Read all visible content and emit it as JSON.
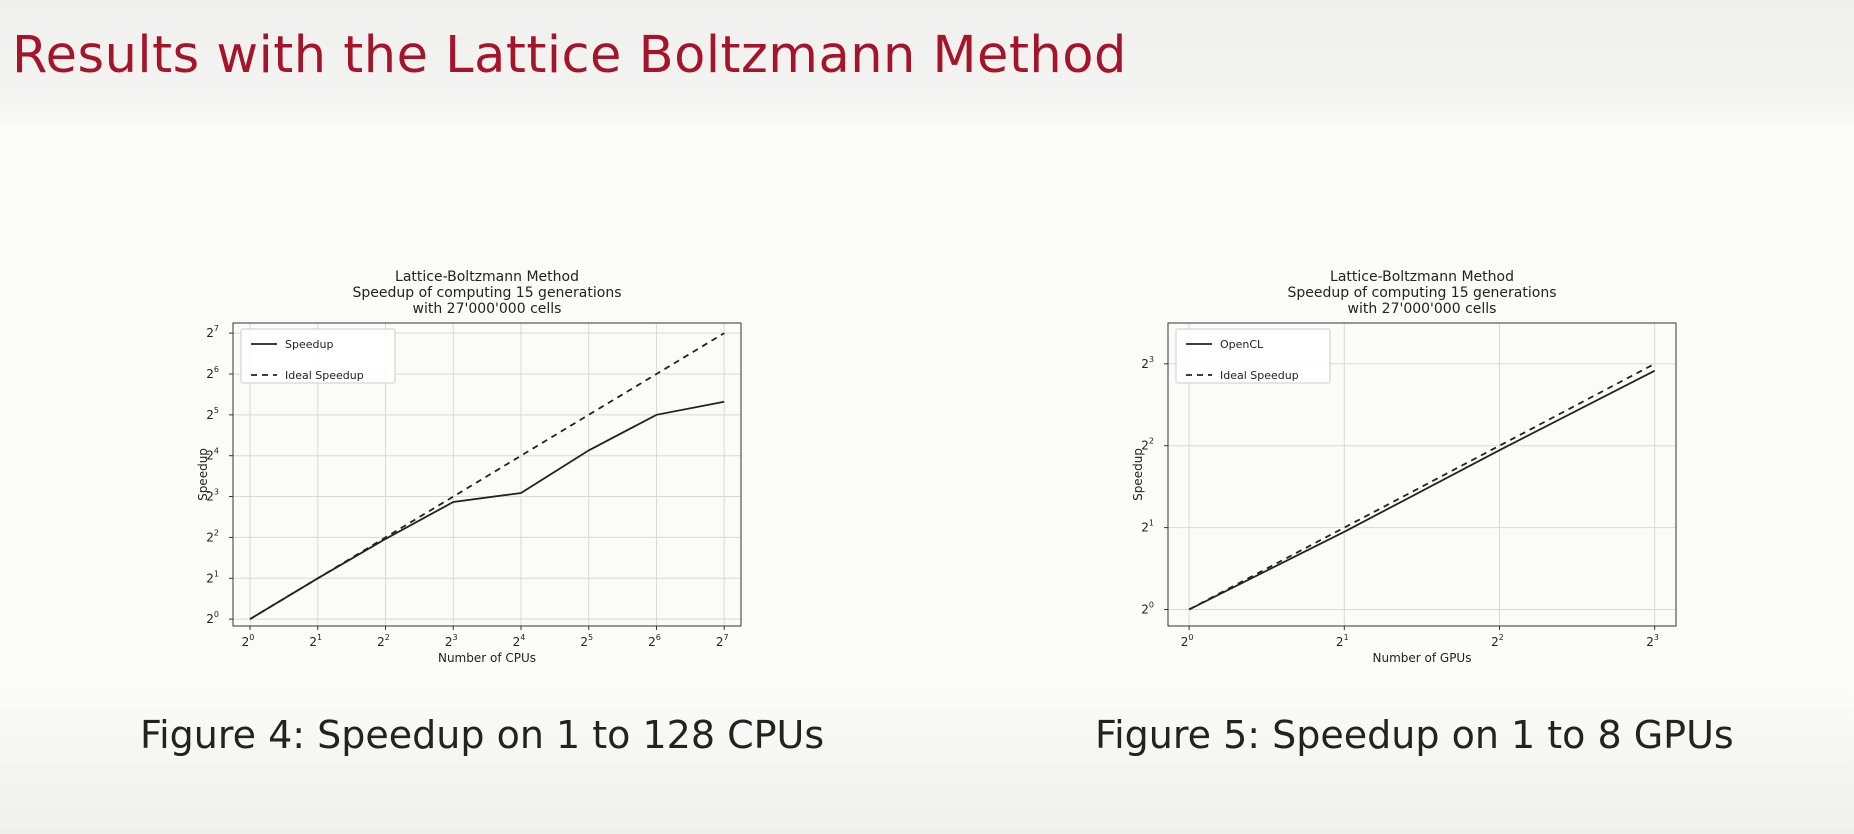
{
  "slide": {
    "title": "Results with the Lattice Boltzmann Method"
  },
  "figures": [
    {
      "caption": "Figure 4: Speedup on 1 to 128 CPUs"
    },
    {
      "caption": "Figure 5: Speedup on 1 to 8 GPUs"
    }
  ],
  "chart_data": [
    {
      "type": "line",
      "title": [
        "Lattice-Boltzmann Method",
        "Speedup of computing 15 generations",
        "with 27'000'000 cells"
      ],
      "xlabel": "Number of CPUs",
      "ylabel": "Speedup",
      "x_scale": "log2",
      "y_scale": "log2",
      "x": [
        1,
        2,
        4,
        8,
        16,
        32,
        64,
        128
      ],
      "xticks": [
        1,
        2,
        4,
        8,
        16,
        32,
        64,
        128
      ],
      "xtick_exponents": [
        "0",
        "1",
        "2",
        "3",
        "4",
        "5",
        "6",
        "7"
      ],
      "yticks": [
        1,
        2,
        4,
        8,
        16,
        32,
        64,
        128
      ],
      "ytick_exponents": [
        "0",
        "1",
        "2",
        "3",
        "4",
        "5",
        "6",
        "7"
      ],
      "xlim": [
        0.84,
        152
      ],
      "ylim": [
        0.89,
        152
      ],
      "grid": true,
      "legend_position": "top-left",
      "series": [
        {
          "name": "Speedup",
          "style": "solid",
          "values": [
            1,
            2,
            3.9,
            7.3,
            8.5,
            17.5,
            32,
            40
          ]
        },
        {
          "name": "Ideal Speedup",
          "style": "dashed",
          "values": [
            1,
            2,
            4,
            8,
            16,
            32,
            64,
            128
          ]
        }
      ]
    },
    {
      "type": "line",
      "title": [
        "Lattice-Boltzmann Method",
        "Speedup of computing 15 generations",
        "with 27'000'000 cells"
      ],
      "xlabel": "Number of GPUs",
      "ylabel": "Speedup",
      "x_scale": "log2",
      "y_scale": "log2",
      "x": [
        1,
        2,
        4,
        8
      ],
      "xticks": [
        1,
        2,
        4,
        8
      ],
      "xtick_exponents": [
        "0",
        "1",
        "2",
        "3"
      ],
      "yticks": [
        1,
        2,
        4,
        8
      ],
      "ytick_exponents": [
        "0",
        "1",
        "2",
        "3"
      ],
      "xlim": [
        0.91,
        8.8
      ],
      "ylim": [
        0.87,
        11.3
      ],
      "grid": true,
      "legend_position": "top-left",
      "series": [
        {
          "name": "OpenCL",
          "style": "solid",
          "values": [
            1,
            1.93,
            3.85,
            7.55
          ]
        },
        {
          "name": "Ideal Speedup",
          "style": "dashed",
          "values": [
            1,
            2,
            4,
            8
          ]
        }
      ]
    }
  ],
  "colors": {
    "title": "#a5152a",
    "line": "#222222",
    "grid": "#d9d9d9"
  }
}
